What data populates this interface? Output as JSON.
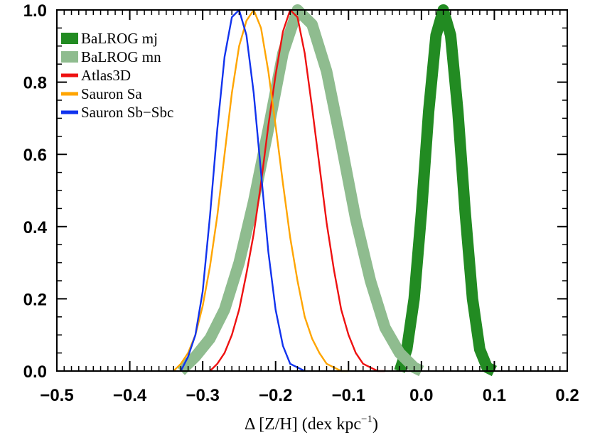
{
  "chart_data": {
    "type": "line",
    "title": "",
    "xlabel": "Δ [Z/H] (dex kpc",
    "xlabel_sup": "−1",
    "xlabel_end": ")",
    "ylabel": "",
    "xlim": [
      -0.5,
      0.2
    ],
    "ylim": [
      0.0,
      1.0
    ],
    "x_ticks": [
      -0.5,
      -0.4,
      -0.3,
      -0.2,
      -0.1,
      0.0,
      0.1,
      0.2
    ],
    "x_tick_labels": [
      "−0.5",
      "−0.4",
      "−0.3",
      "−0.2",
      "−0.1",
      "0.0",
      "0.1",
      "0.2"
    ],
    "y_ticks": [
      0.0,
      0.2,
      0.4,
      0.6,
      0.8,
      1.0
    ],
    "y_tick_labels": [
      "0.0",
      "0.2",
      "0.4",
      "0.6",
      "0.8",
      "1.0"
    ],
    "grid": false,
    "legend_position": "top-left",
    "series": [
      {
        "name": "BaLROG mj",
        "color": "#228b22",
        "style": "thick",
        "x": [
          -0.03,
          -0.02,
          -0.01,
          0.0,
          0.01,
          0.02,
          0.03,
          0.04,
          0.05,
          0.06,
          0.07,
          0.08,
          0.09,
          0.1
        ],
        "y": [
          0.0,
          0.06,
          0.2,
          0.44,
          0.72,
          0.93,
          1.0,
          0.93,
          0.72,
          0.44,
          0.2,
          0.06,
          0.01,
          0.0
        ]
      },
      {
        "name": "BaLROG mn",
        "color": "#8fbc8f",
        "style": "thick",
        "x": [
          -0.33,
          -0.31,
          -0.29,
          -0.27,
          -0.25,
          -0.23,
          -0.21,
          -0.19,
          -0.17,
          -0.15,
          -0.13,
          -0.11,
          -0.09,
          -0.07,
          -0.05,
          -0.03,
          -0.01,
          0.0
        ],
        "y": [
          0.0,
          0.04,
          0.09,
          0.17,
          0.3,
          0.47,
          0.67,
          0.88,
          1.0,
          0.96,
          0.83,
          0.63,
          0.42,
          0.25,
          0.12,
          0.05,
          0.01,
          0.0
        ]
      },
      {
        "name": "Atlas3D",
        "color": "#ee1111",
        "style": "thin",
        "x": [
          -0.29,
          -0.28,
          -0.27,
          -0.26,
          -0.25,
          -0.24,
          -0.23,
          -0.22,
          -0.21,
          -0.2,
          -0.19,
          -0.18,
          -0.17,
          -0.16,
          -0.15,
          -0.14,
          -0.13,
          -0.12,
          -0.11,
          -0.1,
          -0.09,
          -0.08,
          -0.07,
          -0.06,
          -0.05
        ],
        "y": [
          0.0,
          0.02,
          0.05,
          0.1,
          0.17,
          0.27,
          0.38,
          0.52,
          0.68,
          0.82,
          0.94,
          1.0,
          0.98,
          0.88,
          0.73,
          0.57,
          0.41,
          0.28,
          0.17,
          0.1,
          0.05,
          0.02,
          0.01,
          0.0,
          0.0
        ]
      },
      {
        "name": "Sauron Sa",
        "color": "#ffa500",
        "style": "thin",
        "x": [
          -0.34,
          -0.33,
          -0.32,
          -0.31,
          -0.3,
          -0.29,
          -0.28,
          -0.27,
          -0.26,
          -0.25,
          -0.24,
          -0.23,
          -0.22,
          -0.21,
          -0.2,
          -0.19,
          -0.18,
          -0.17,
          -0.16,
          -0.15,
          -0.14,
          -0.13,
          -0.12,
          -0.11,
          -0.1
        ],
        "y": [
          0.0,
          0.02,
          0.05,
          0.1,
          0.18,
          0.29,
          0.43,
          0.6,
          0.77,
          0.9,
          0.97,
          1.0,
          0.95,
          0.83,
          0.68,
          0.52,
          0.37,
          0.25,
          0.15,
          0.09,
          0.05,
          0.02,
          0.01,
          0.0,
          0.0
        ]
      },
      {
        "name": "Sauron Sb−Sbc",
        "color": "#1133ee",
        "style": "thin",
        "x": [
          -0.33,
          -0.32,
          -0.31,
          -0.3,
          -0.29,
          -0.28,
          -0.27,
          -0.26,
          -0.25,
          -0.24,
          -0.23,
          -0.22,
          -0.21,
          -0.2,
          -0.19,
          -0.18,
          -0.17,
          -0.16
        ],
        "y": [
          0.0,
          0.04,
          0.1,
          0.22,
          0.43,
          0.67,
          0.87,
          0.98,
          1.0,
          0.93,
          0.77,
          0.55,
          0.33,
          0.17,
          0.07,
          0.02,
          0.01,
          0.0
        ]
      }
    ]
  }
}
